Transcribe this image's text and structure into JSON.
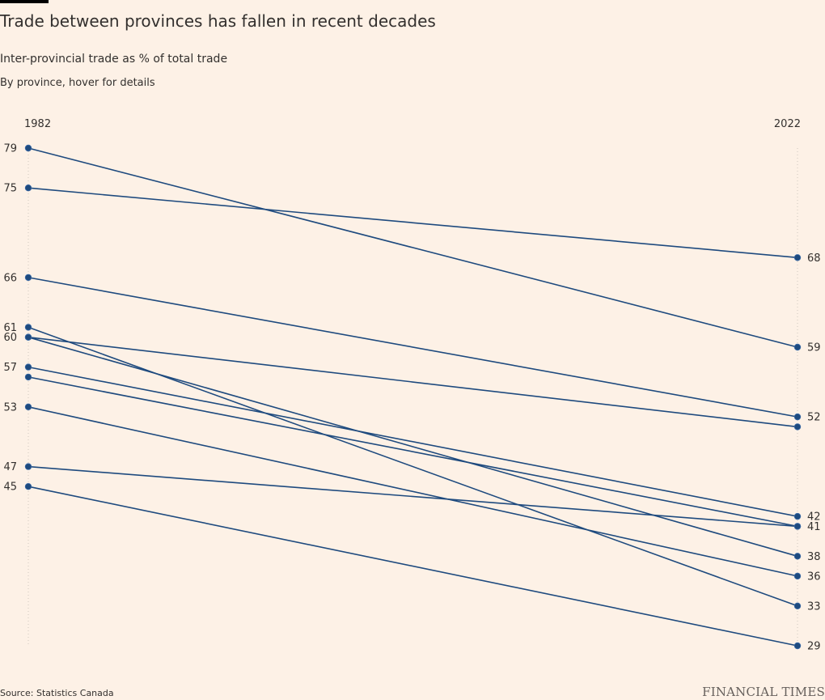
{
  "header": {
    "title": "Trade between provinces has fallen in recent decades",
    "subtitle": "Inter-provincial trade as % of total trade",
    "note": "By province, hover for details"
  },
  "footer": {
    "source": "Source: Statistics Canada",
    "brand": "FINANCIAL TIMES"
  },
  "colors": {
    "background": "#fdf1e6",
    "series": "#1e4a7e",
    "guide": "#cfc6bd",
    "text": "#33302e"
  },
  "chart_data": {
    "type": "line",
    "chart_style": "slope",
    "x": [
      "1982",
      "2022"
    ],
    "series": [
      {
        "values": [
          79,
          59
        ]
      },
      {
        "values": [
          75,
          68
        ]
      },
      {
        "values": [
          66,
          52
        ]
      },
      {
        "values": [
          61,
          33
        ]
      },
      {
        "values": [
          60,
          38
        ]
      },
      {
        "values": [
          60,
          51
        ]
      },
      {
        "values": [
          57,
          42
        ]
      },
      {
        "values": [
          56,
          41
        ]
      },
      {
        "values": [
          53,
          36
        ]
      },
      {
        "values": [
          47,
          41
        ]
      },
      {
        "values": [
          45,
          29
        ]
      }
    ],
    "start_labels": [
      "79",
      "75",
      "66",
      "61",
      "60",
      "57",
      "53",
      "47",
      "45"
    ],
    "end_labels": [
      "68",
      "59",
      "52",
      "42",
      "41",
      "38",
      "36",
      "33",
      "29"
    ],
    "ylim": [
      29,
      79
    ],
    "grid": false,
    "legend": "none"
  }
}
